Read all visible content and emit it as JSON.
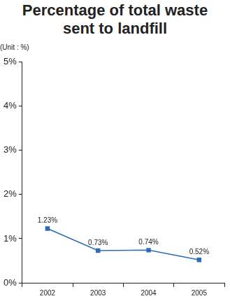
{
  "chart_data": {
    "type": "line",
    "title": "Percentage of total waste sent to landfill",
    "ylabel": "(Unit : %)",
    "categories": [
      "2002",
      "2003",
      "2004",
      "2005"
    ],
    "values": [
      1.23,
      0.73,
      0.74,
      0.52
    ],
    "value_labels": [
      "1.23%",
      "0.73%",
      "0.74%",
      "0.52%"
    ],
    "data_labels": true,
    "color": "#2a6db5",
    "marker": "square",
    "line_style": "solid",
    "ylim": [
      0,
      5
    ],
    "yticks": [
      {
        "value": 0,
        "label": "0%"
      },
      {
        "value": 1,
        "label": "1%"
      },
      {
        "value": 2,
        "label": "2%"
      },
      {
        "value": 3,
        "label": "3%"
      },
      {
        "value": 4,
        "label": "4%"
      },
      {
        "value": 5,
        "label": "5%"
      }
    ],
    "grid": false
  }
}
